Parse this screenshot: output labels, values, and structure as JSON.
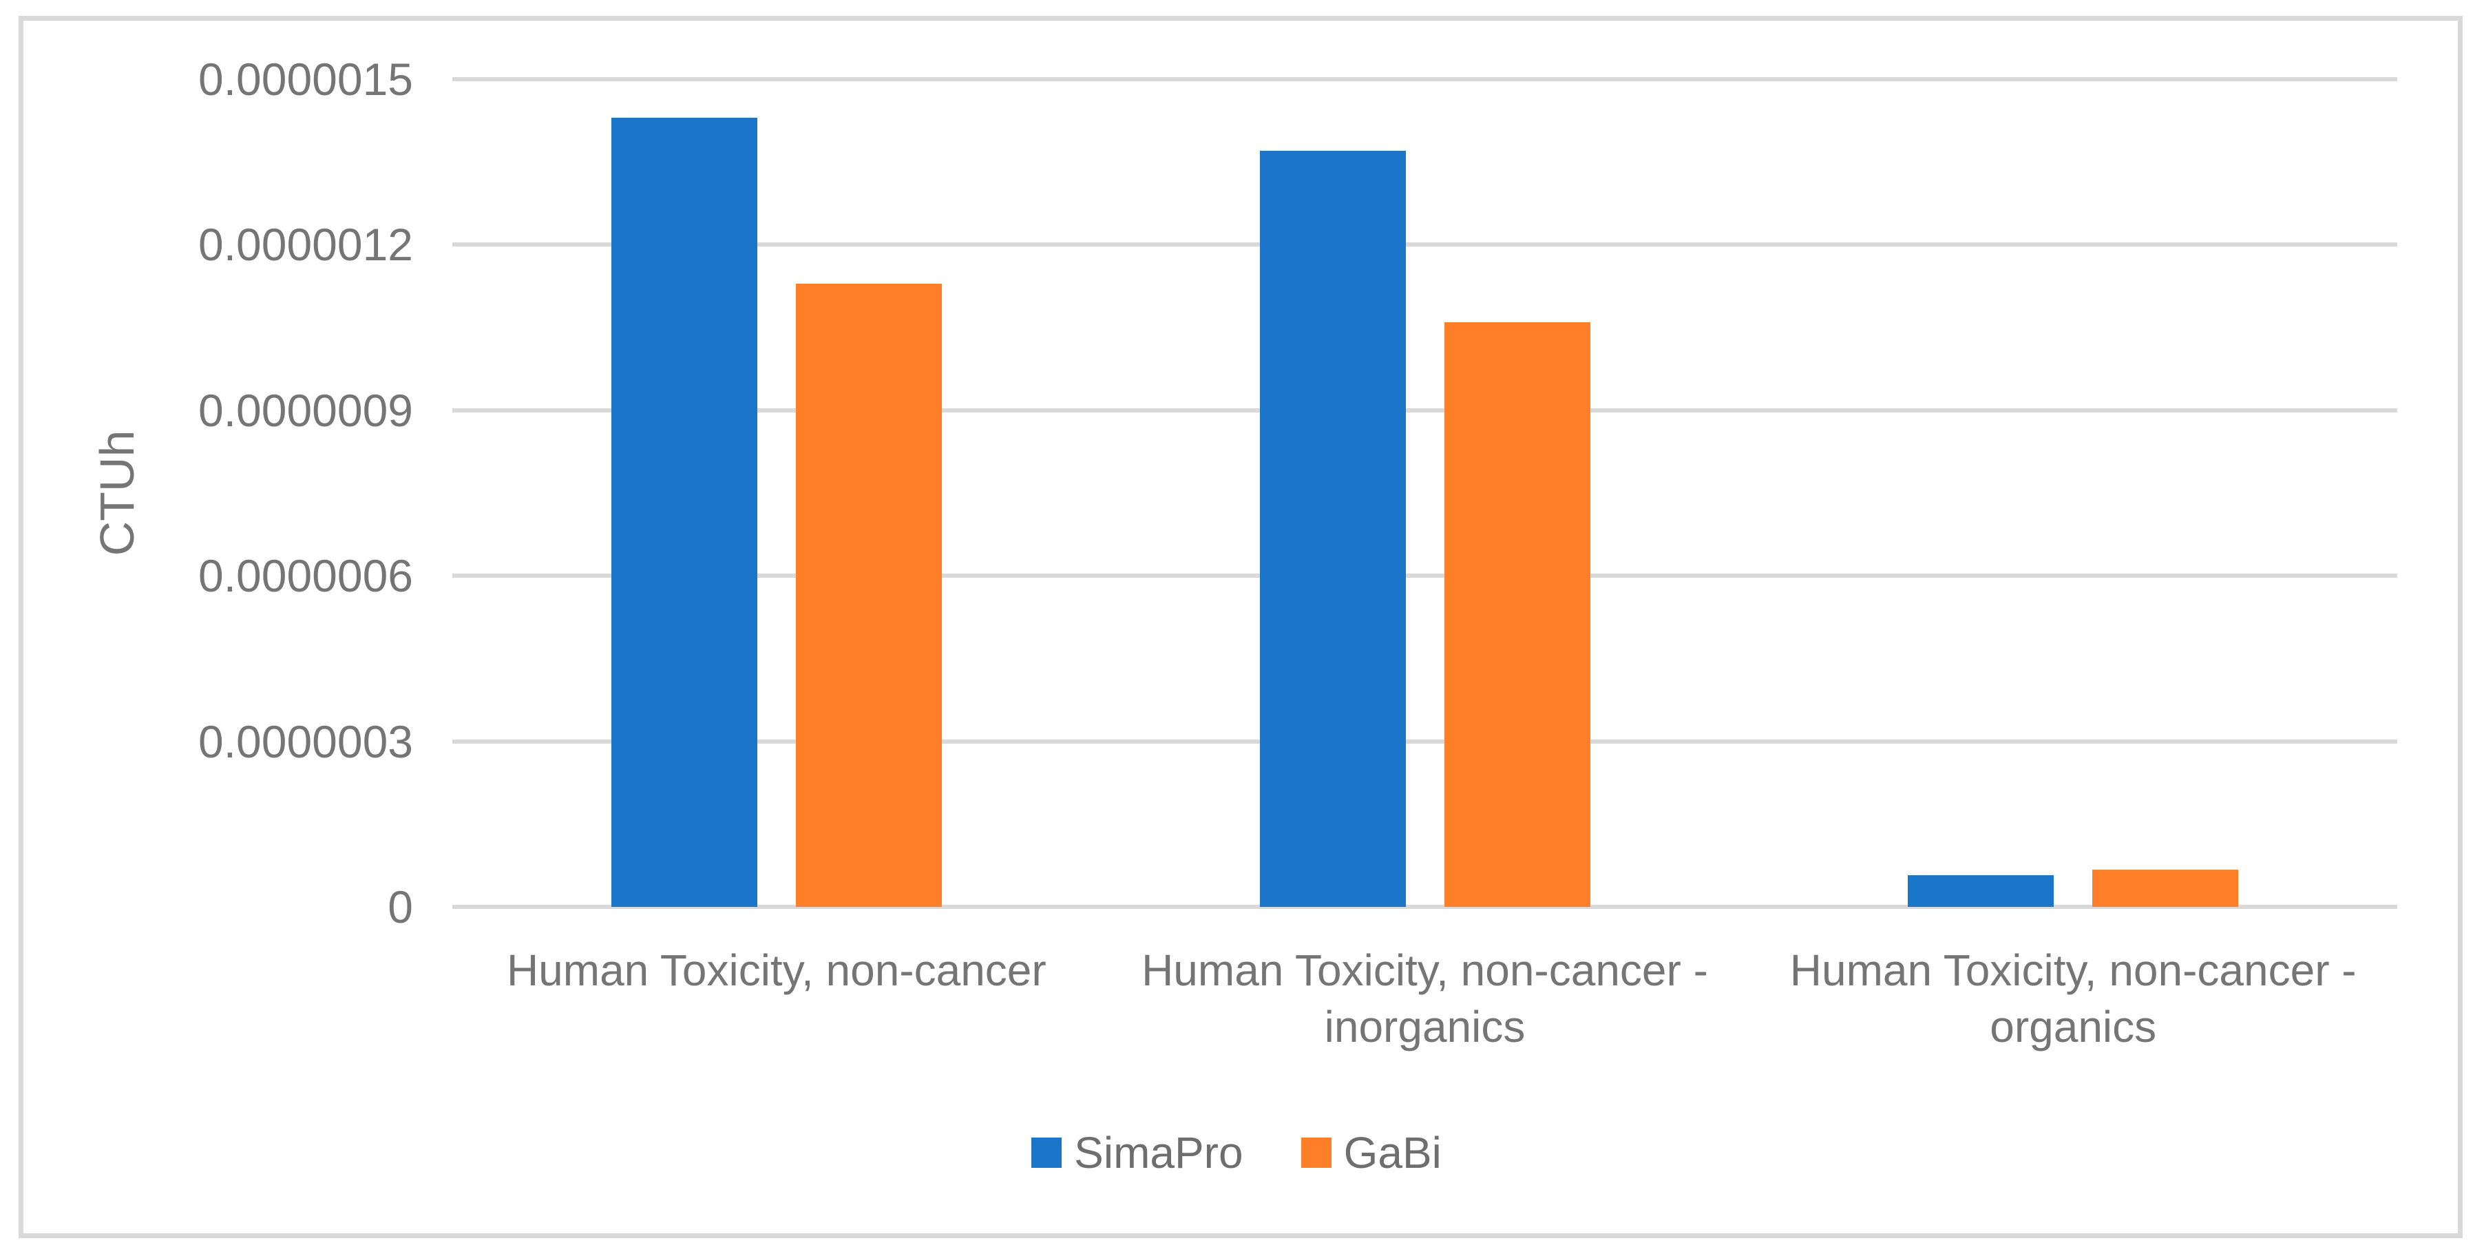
{
  "figure": {
    "background_color": "#ffffff",
    "border_color": "#d9d9d9",
    "text_color": "#757575",
    "gridline_color": "#d9d9d9"
  },
  "chart_data": {
    "type": "bar",
    "title": "",
    "xlabel": "",
    "ylabel": "CTUh",
    "ylim": [
      0,
      1.5e-06
    ],
    "grid": "horizontal",
    "legend_position": "bottom",
    "categories": [
      "Human Toxicity, non-cancer",
      "Human Toxicity, non-cancer - inorganics",
      "Human Toxicity, non-cancer - organics"
    ],
    "series": [
      {
        "name": "SimaPro",
        "color": "#1b75c8",
        "values": [
          1.43e-06,
          1.37e-06,
          5.7e-08
        ]
      },
      {
        "name": "GaBi",
        "color": "#ff7e28",
        "values": [
          1.13e-06,
          1.06e-06,
          6.8e-08
        ]
      }
    ],
    "y_ticks": [
      {
        "label": "0",
        "value": 0
      },
      {
        "label": "0.0000003",
        "value": 3e-07
      },
      {
        "label": "0.0000006",
        "value": 6e-07
      },
      {
        "label": "0.0000009",
        "value": 9e-07
      },
      {
        "label": "0.0000012",
        "value": 1.2e-06
      },
      {
        "label": "0.0000015",
        "value": 1.5e-06
      }
    ]
  }
}
